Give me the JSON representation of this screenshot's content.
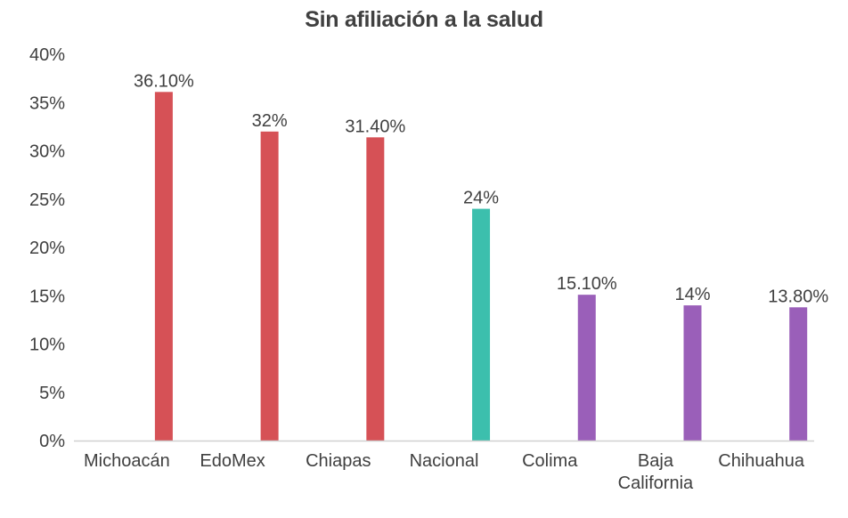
{
  "chart_data": {
    "type": "bar",
    "title": "Sin afiliación a la salud",
    "xlabel": "",
    "ylabel": "",
    "categories": [
      "Michoacán",
      "EdoMex",
      "Chiapas",
      "Nacional",
      "Colima",
      "Baja California",
      "Chihuahua"
    ],
    "category_lines": [
      [
        "Michoacán"
      ],
      [
        "EdoMex"
      ],
      [
        "Chiapas"
      ],
      [
        "Nacional"
      ],
      [
        "Colima"
      ],
      [
        "Baja",
        "California"
      ],
      [
        "Chihuahua"
      ]
    ],
    "values": [
      36.1,
      32,
      31.4,
      24,
      15.1,
      14,
      13.8
    ],
    "data_labels": [
      "36.10%",
      "32%",
      "31.40%",
      "24%",
      "15.10%",
      "14%",
      "13.80%"
    ],
    "bar_colors": [
      "#d65156",
      "#d65156",
      "#d65156",
      "#3cbfad",
      "#9a5fb9",
      "#9a5fb9",
      "#9a5fb9"
    ],
    "ylim": [
      0,
      40
    ],
    "yticks": [
      0,
      5,
      10,
      15,
      20,
      25,
      30,
      35,
      40
    ],
    "ytick_labels": [
      "0%",
      "5%",
      "10%",
      "15%",
      "20%",
      "25%",
      "30%",
      "35%",
      "40%"
    ],
    "grid": false,
    "legend": "none"
  }
}
